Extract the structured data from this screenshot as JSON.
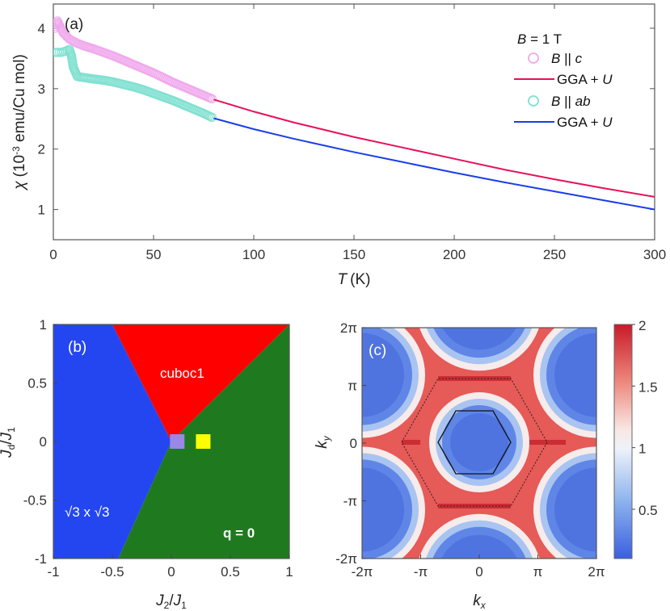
{
  "chart_data": [
    {
      "type": "line",
      "panel": "(a)",
      "xlabel_symbol": "T",
      "xlabel_unit": "(K)",
      "ylabel_symbol": "χ",
      "ylabel_unit_pre": "(10",
      "ylabel_unit_exp": "-3",
      "ylabel_unit_post": " emu/Cu mol)",
      "xlim": [
        0,
        300
      ],
      "ylim": [
        0.5,
        4.4
      ],
      "xticks": [
        "0",
        "50",
        "100",
        "150",
        "200",
        "250",
        "300"
      ],
      "yticks": [
        "1",
        "2",
        "3",
        "4"
      ],
      "legend_title": "B = 1 T",
      "legend_title_sym": "B",
      "legend_title_rest": " = 1 T",
      "legend_placement": "top-right",
      "series": [
        {
          "name": "B || c",
          "sym": "B",
          "rel": " || ",
          "dir": "c",
          "style": "markers",
          "color": "#f0a8ec",
          "x": [
            1,
            2,
            3,
            5,
            8,
            12,
            16,
            20,
            25,
            30,
            35,
            40,
            45,
            50,
            55,
            60,
            65,
            70,
            75,
            80
          ],
          "y": [
            4.0,
            4.12,
            4.05,
            3.92,
            3.82,
            3.75,
            3.7,
            3.66,
            3.6,
            3.54,
            3.47,
            3.4,
            3.33,
            3.26,
            3.18,
            3.1,
            3.03,
            2.96,
            2.89,
            2.82
          ]
        },
        {
          "name": "GGA + U",
          "sym": "GGA + ",
          "rel": "",
          "dir": "U",
          "style": "line",
          "color": "#e8105a",
          "x": [
            80,
            100,
            120,
            150,
            175,
            200,
            225,
            250,
            275,
            300
          ],
          "y": [
            2.82,
            2.62,
            2.44,
            2.2,
            2.02,
            1.84,
            1.66,
            1.5,
            1.35,
            1.21
          ]
        },
        {
          "name": "B || ab",
          "sym": "B",
          "rel": " || ",
          "dir": "ab",
          "style": "markers",
          "color": "#7fe0d0",
          "x": [
            1,
            2,
            4,
            6,
            8,
            9,
            10,
            12,
            16,
            20,
            25,
            30,
            35,
            40,
            45,
            50,
            55,
            60,
            65,
            70,
            75,
            80
          ],
          "y": [
            3.6,
            3.6,
            3.6,
            3.62,
            3.65,
            3.55,
            3.35,
            3.2,
            3.18,
            3.16,
            3.14,
            3.11,
            3.07,
            3.03,
            2.98,
            2.92,
            2.86,
            2.8,
            2.73,
            2.66,
            2.59,
            2.51
          ]
        },
        {
          "name": "GGA + U",
          "sym": "GGA + ",
          "rel": "",
          "dir": "U",
          "style": "line",
          "color": "#1a3ee8",
          "x": [
            80,
            100,
            120,
            150,
            175,
            200,
            225,
            250,
            275,
            300
          ],
          "y": [
            2.51,
            2.33,
            2.17,
            1.95,
            1.78,
            1.61,
            1.45,
            1.3,
            1.15,
            1.0
          ]
        }
      ]
    },
    {
      "type": "phase-diagram",
      "panel": "(b)",
      "xlabel": "J2/J1",
      "xlabel_a": "J",
      "xlabel_a_sub": "2",
      "xlabel_b": "J",
      "xlabel_b_sub": "1",
      "ylabel_a": "J",
      "ylabel_a_sub": "d",
      "ylabel_b": "J",
      "ylabel_b_sub": "1",
      "xlim": [
        -1,
        1
      ],
      "ylim": [
        -1,
        1
      ],
      "xticks": [
        "-1",
        "-0.5",
        "0",
        "0.5",
        "1"
      ],
      "yticks": [
        "-1",
        "-0.5",
        "0",
        "0.5",
        "1"
      ],
      "regions": [
        {
          "name": "cuboc1",
          "color": "#ff0000",
          "polygon": [
            [
              0,
              0
            ],
            [
              -0.5,
              1
            ],
            [
              1,
              1
            ]
          ]
        },
        {
          "name": "√3 x √3",
          "color": "#2446f0",
          "polygon": [
            [
              -1,
              -1
            ],
            [
              -0.45,
              -1
            ],
            [
              0,
              0
            ],
            [
              -0.5,
              1
            ],
            [
              -1,
              1
            ]
          ]
        },
        {
          "name": "q = 0",
          "color": "#1f7a1f",
          "polygon": [
            [
              -0.45,
              -1
            ],
            [
              1,
              -1
            ],
            [
              1,
              1
            ],
            [
              0,
              0
            ]
          ]
        }
      ],
      "markers": [
        {
          "x": 0.05,
          "y": 0.0,
          "color": "#9a88e6"
        },
        {
          "x": 0.27,
          "y": 0.0,
          "color": "#ffff00"
        }
      ]
    },
    {
      "type": "heatmap",
      "panel": "(c)",
      "xlabel_a": "k",
      "xlabel_a_sub": "x",
      "ylabel_a": "k",
      "ylabel_a_sub": "y",
      "xlim": [
        -6.2832,
        6.2832
      ],
      "ylim": [
        -6.2832,
        6.2832
      ],
      "xticks": [
        "-2π",
        "-π",
        "0",
        "π",
        "2π"
      ],
      "yticks": [
        "-2π",
        "-π",
        "0",
        "π",
        "2π"
      ],
      "colorbar": {
        "min": 0.1,
        "max": 2.0,
        "ticks": [
          "2",
          "1.5",
          "1",
          "0.5"
        ],
        "tick_values": [
          2,
          1.5,
          1,
          0.5
        ]
      }
    }
  ]
}
